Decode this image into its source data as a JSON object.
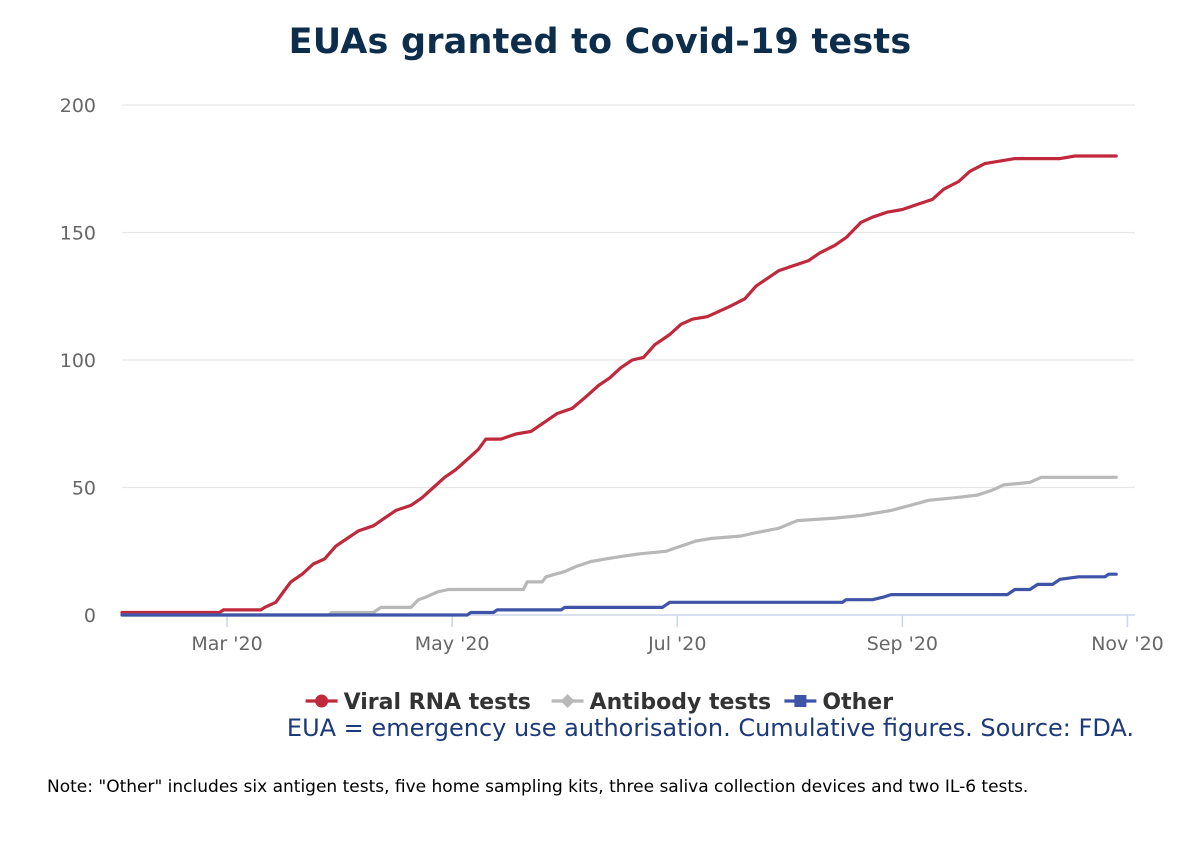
{
  "chart_data": {
    "type": "line",
    "title": "EUAs granted to Covid-19 tests",
    "xlabel": "",
    "ylabel": "",
    "ylim": [
      0,
      200
    ],
    "y_ticks": [
      "0",
      "50",
      "100",
      "150",
      "200"
    ],
    "x_tick_labels": [
      "Mar '20",
      "May '20",
      "Jul '20",
      "Sep '20",
      "Nov '20"
    ],
    "x_unit": "days since 2020-02-01",
    "x_range": [
      0,
      270
    ],
    "x_tick_positions": [
      28,
      88,
      148,
      208,
      268
    ],
    "grid": true,
    "legend_position": "bottom",
    "series": [
      {
        "name": "Viral RNA tests",
        "color": "#c0283c",
        "marker": "circle",
        "points": [
          [
            0,
            1
          ],
          [
            26,
            1
          ],
          [
            27,
            2
          ],
          [
            37,
            2
          ],
          [
            38,
            3
          ],
          [
            41,
            5
          ],
          [
            43,
            9
          ],
          [
            45,
            13
          ],
          [
            48,
            16
          ],
          [
            51,
            20
          ],
          [
            54,
            22
          ],
          [
            57,
            27
          ],
          [
            60,
            30
          ],
          [
            63,
            33
          ],
          [
            67,
            35
          ],
          [
            70,
            38
          ],
          [
            73,
            41
          ],
          [
            77,
            43
          ],
          [
            80,
            46
          ],
          [
            83,
            50
          ],
          [
            86,
            54
          ],
          [
            89,
            57
          ],
          [
            92,
            61
          ],
          [
            95,
            65
          ],
          [
            97,
            69
          ],
          [
            101,
            69
          ],
          [
            105,
            71
          ],
          [
            109,
            72
          ],
          [
            113,
            76
          ],
          [
            116,
            79
          ],
          [
            120,
            81
          ],
          [
            124,
            86
          ],
          [
            127,
            90
          ],
          [
            130,
            93
          ],
          [
            133,
            97
          ],
          [
            136,
            100
          ],
          [
            139,
            101
          ],
          [
            142,
            106
          ],
          [
            146,
            110
          ],
          [
            149,
            114
          ],
          [
            152,
            116
          ],
          [
            156,
            117
          ],
          [
            159,
            119
          ],
          [
            162,
            121
          ],
          [
            166,
            124
          ],
          [
            169,
            129
          ],
          [
            172,
            132
          ],
          [
            175,
            135
          ],
          [
            179,
            137
          ],
          [
            183,
            139
          ],
          [
            186,
            142
          ],
          [
            190,
            145
          ],
          [
            193,
            148
          ],
          [
            197,
            154
          ],
          [
            200,
            156
          ],
          [
            204,
            158
          ],
          [
            208,
            159
          ],
          [
            212,
            161
          ],
          [
            216,
            163
          ],
          [
            219,
            167
          ],
          [
            223,
            170
          ],
          [
            226,
            174
          ],
          [
            230,
            177
          ],
          [
            234,
            178
          ],
          [
            238,
            179
          ],
          [
            246,
            179
          ],
          [
            250,
            179
          ],
          [
            254,
            180
          ],
          [
            265,
            180
          ]
        ]
      },
      {
        "name": "Antibody tests",
        "color": "#b8b8b8",
        "marker": "diamond",
        "points": [
          [
            0,
            0
          ],
          [
            55,
            0
          ],
          [
            56,
            1
          ],
          [
            67,
            1
          ],
          [
            69,
            3
          ],
          [
            77,
            3
          ],
          [
            79,
            6
          ],
          [
            81,
            7
          ],
          [
            84,
            9
          ],
          [
            87,
            10
          ],
          [
            93,
            10
          ],
          [
            107,
            10
          ],
          [
            108,
            13
          ],
          [
            112,
            13
          ],
          [
            113,
            15
          ],
          [
            118,
            17
          ],
          [
            121,
            19
          ],
          [
            125,
            21
          ],
          [
            129,
            22
          ],
          [
            133,
            23
          ],
          [
            138,
            24
          ],
          [
            145,
            25
          ],
          [
            149,
            27
          ],
          [
            153,
            29
          ],
          [
            157,
            30
          ],
          [
            165,
            31
          ],
          [
            168,
            32
          ],
          [
            175,
            34
          ],
          [
            180,
            37
          ],
          [
            190,
            38
          ],
          [
            197,
            39
          ],
          [
            205,
            41
          ],
          [
            210,
            43
          ],
          [
            215,
            45
          ],
          [
            222,
            46
          ],
          [
            228,
            47
          ],
          [
            232,
            49
          ],
          [
            235,
            51
          ],
          [
            242,
            52
          ],
          [
            245,
            54
          ],
          [
            265,
            54
          ]
        ]
      },
      {
        "name": "Other",
        "color": "#3f54a6",
        "marker": "square",
        "points": [
          [
            0,
            0
          ],
          [
            92,
            0
          ],
          [
            93,
            1
          ],
          [
            99,
            1
          ],
          [
            100,
            2
          ],
          [
            117,
            2
          ],
          [
            118,
            3
          ],
          [
            144,
            3
          ],
          [
            146,
            5
          ],
          [
            192,
            5
          ],
          [
            193,
            6
          ],
          [
            200,
            6
          ],
          [
            203,
            7
          ],
          [
            205,
            8
          ],
          [
            236,
            8
          ],
          [
            238,
            10
          ],
          [
            242,
            10
          ],
          [
            244,
            12
          ],
          [
            248,
            12
          ],
          [
            250,
            14
          ],
          [
            255,
            15
          ],
          [
            262,
            15
          ],
          [
            263,
            16
          ],
          [
            265,
            16
          ]
        ]
      }
    ]
  },
  "source_text": "EUA = emergency use authorisation. Cumulative figures. Source: FDA.",
  "note_text": "Note: \"Other\" includes six antigen tests, five home sampling kits, three saliva collection devices and two IL-6 tests."
}
